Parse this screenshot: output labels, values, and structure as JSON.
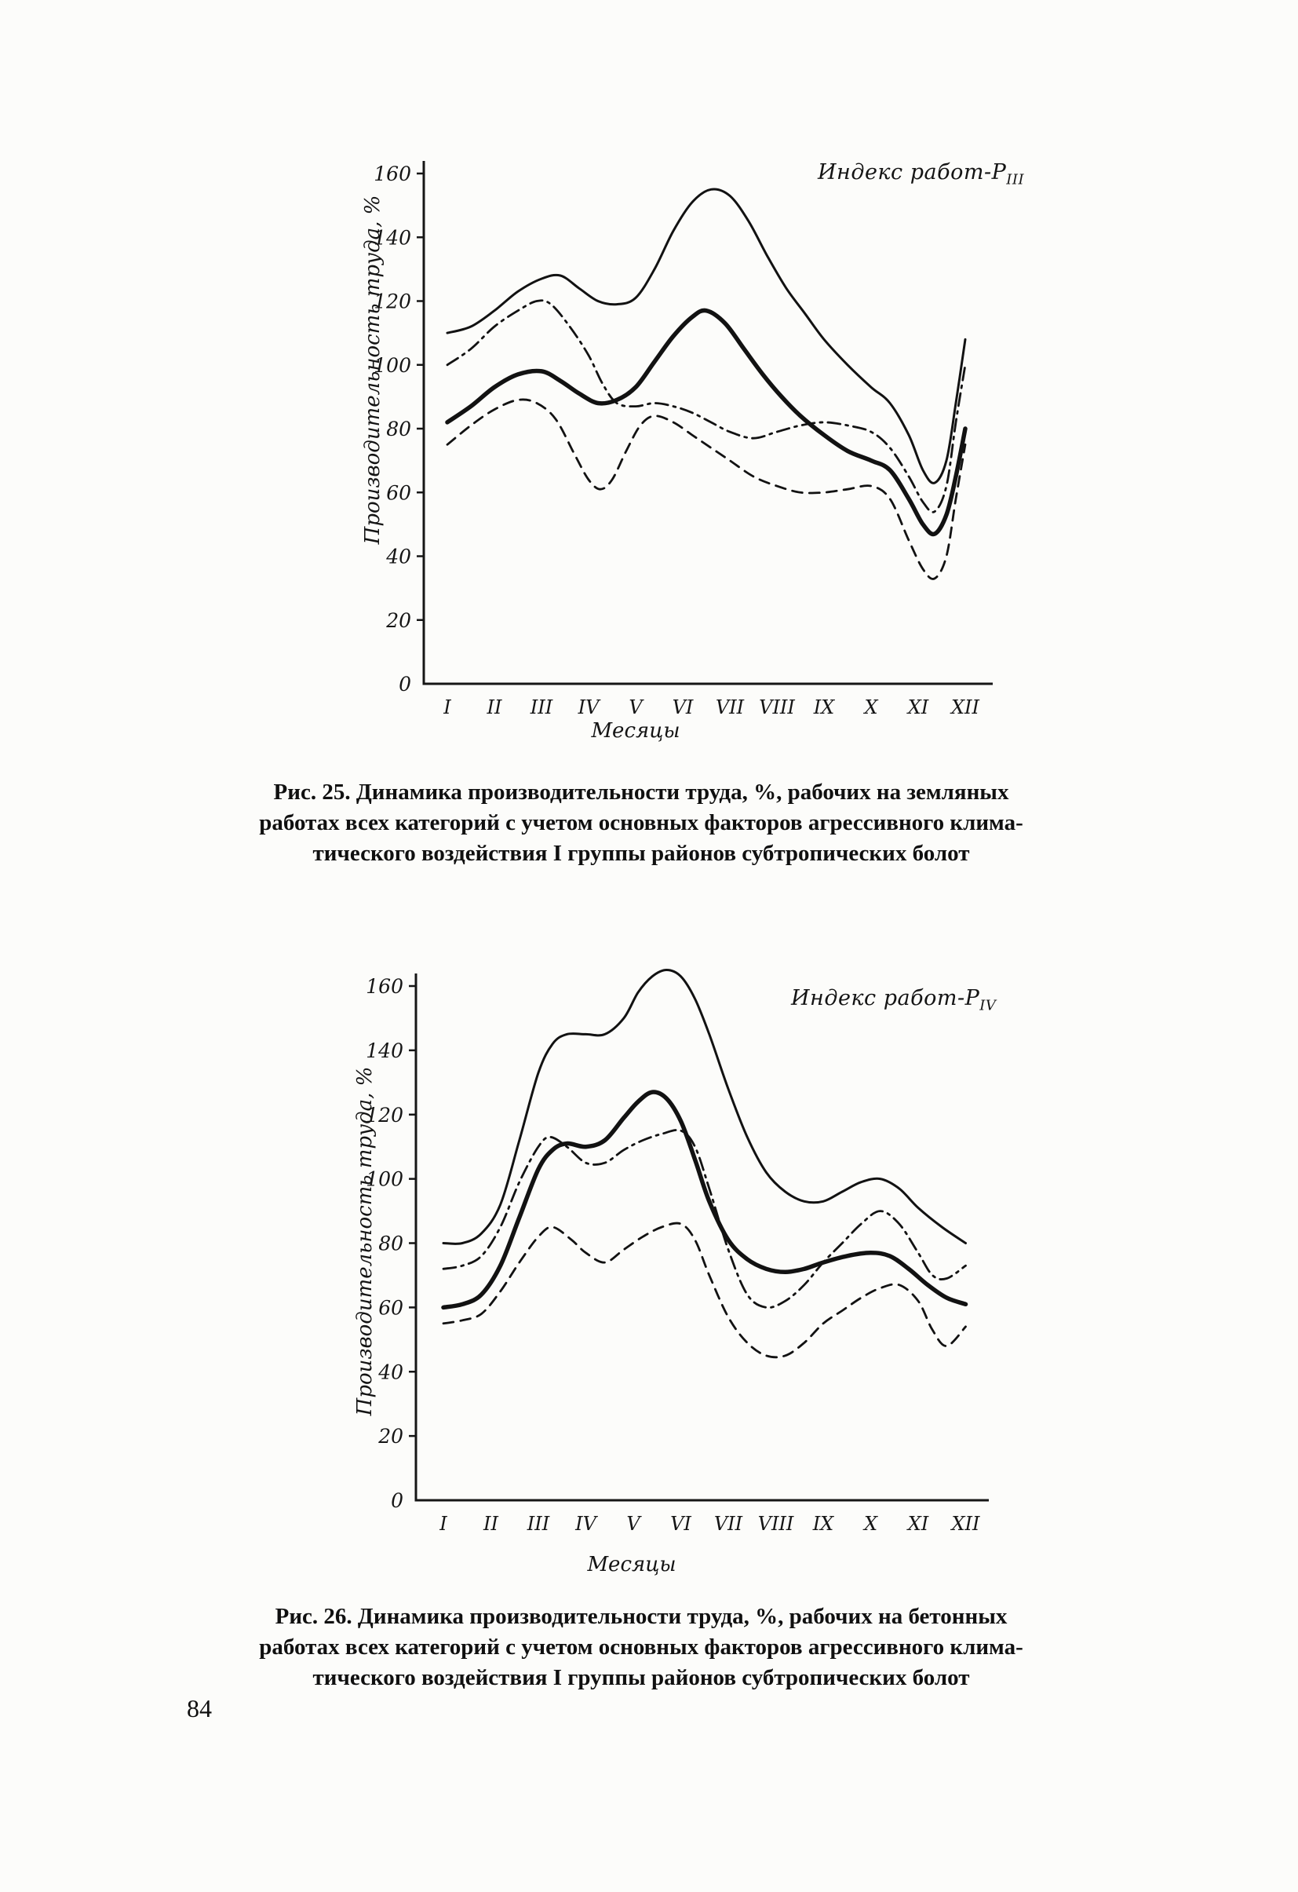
{
  "page_number": "84",
  "captions": {
    "fig25": [
      "Рис. 25. Динамика производительности труда, %, рабочих на земляных",
      "работах всех категорий с учетом основных факторов агрессивного клима-",
      "тического воздействия I группы районов субтропических болот"
    ],
    "fig26": [
      "Рис. 26. Динамика производительности труда, %, рабочих на бетонных",
      "работах всех категорий с учетом основных факторов агрессивного клима-",
      "тического воздействия I группы районов субтропических болот"
    ]
  },
  "chart_data": [
    {
      "type": "line",
      "title_main": "Индекс работ-Р",
      "title_sub": "III",
      "ylabel": "Производительность труда, %",
      "xlabel": "Месяцы",
      "x_ticklabels": [
        "I",
        "II",
        "III",
        "IV",
        "V",
        "VI",
        "VII",
        "VIII",
        "IX",
        "X",
        "XI",
        "XII"
      ],
      "ylim": [
        0,
        160
      ],
      "ytick_step": 20,
      "grid": false,
      "legend": "none",
      "line_color": "#121212",
      "series": [
        {
          "name": "curve-solid-thin",
          "style": "solid-thin",
          "points": [
            [
              1,
              110
            ],
            [
              1.5,
              112
            ],
            [
              2,
              117
            ],
            [
              2.5,
              123
            ],
            [
              3,
              127
            ],
            [
              3.4,
              128
            ],
            [
              3.8,
              124
            ],
            [
              4.2,
              120
            ],
            [
              4.6,
              119
            ],
            [
              5,
              121
            ],
            [
              5.4,
              130
            ],
            [
              5.8,
              142
            ],
            [
              6.2,
              151
            ],
            [
              6.6,
              155
            ],
            [
              7,
              153
            ],
            [
              7.4,
              145
            ],
            [
              7.8,
              134
            ],
            [
              8.2,
              124
            ],
            [
              8.6,
              116
            ],
            [
              9,
              108
            ],
            [
              9.5,
              100
            ],
            [
              10,
              93
            ],
            [
              10.4,
              88
            ],
            [
              10.8,
              78
            ],
            [
              11.1,
              67
            ],
            [
              11.35,
              63
            ],
            [
              11.6,
              70
            ],
            [
              11.8,
              88
            ],
            [
              12,
              108
            ]
          ]
        },
        {
          "name": "curve-dash-dot",
          "style": "dashdot",
          "points": [
            [
              1,
              100
            ],
            [
              1.5,
              105
            ],
            [
              2,
              112
            ],
            [
              2.5,
              117
            ],
            [
              2.9,
              120
            ],
            [
              3.2,
              119
            ],
            [
              3.6,
              112
            ],
            [
              4,
              103
            ],
            [
              4.3,
              94
            ],
            [
              4.6,
              88
            ],
            [
              5,
              87
            ],
            [
              5.4,
              88
            ],
            [
              5.8,
              87
            ],
            [
              6.2,
              85
            ],
            [
              6.6,
              82
            ],
            [
              7,
              79
            ],
            [
              7.5,
              77
            ],
            [
              8,
              79
            ],
            [
              8.5,
              81
            ],
            [
              9,
              82
            ],
            [
              9.5,
              81
            ],
            [
              10,
              79
            ],
            [
              10.4,
              74
            ],
            [
              10.8,
              65
            ],
            [
              11.1,
              57
            ],
            [
              11.35,
              54
            ],
            [
              11.6,
              62
            ],
            [
              11.8,
              82
            ],
            [
              12,
              100
            ]
          ]
        },
        {
          "name": "curve-solid-thick",
          "style": "solid-thick",
          "points": [
            [
              1,
              82
            ],
            [
              1.5,
              87
            ],
            [
              2,
              93
            ],
            [
              2.5,
              97
            ],
            [
              3,
              98
            ],
            [
              3.4,
              95
            ],
            [
              3.8,
              91
            ],
            [
              4.2,
              88
            ],
            [
              4.6,
              89
            ],
            [
              5,
              93
            ],
            [
              5.4,
              101
            ],
            [
              5.8,
              109
            ],
            [
              6.2,
              115
            ],
            [
              6.5,
              117
            ],
            [
              6.9,
              113
            ],
            [
              7.3,
              105
            ],
            [
              7.7,
              97
            ],
            [
              8.1,
              90
            ],
            [
              8.5,
              84
            ],
            [
              9,
              78
            ],
            [
              9.5,
              73
            ],
            [
              10,
              70
            ],
            [
              10.4,
              67
            ],
            [
              10.8,
              58
            ],
            [
              11.1,
              50
            ],
            [
              11.35,
              47
            ],
            [
              11.6,
              53
            ],
            [
              11.8,
              65
            ],
            [
              12,
              80
            ]
          ]
        },
        {
          "name": "curve-dashed",
          "style": "dashed",
          "points": [
            [
              1,
              75
            ],
            [
              1.5,
              81
            ],
            [
              2,
              86
            ],
            [
              2.5,
              89
            ],
            [
              2.9,
              88
            ],
            [
              3.3,
              83
            ],
            [
              3.7,
              72
            ],
            [
              4,
              64
            ],
            [
              4.25,
              61
            ],
            [
              4.5,
              64
            ],
            [
              4.8,
              73
            ],
            [
              5.1,
              81
            ],
            [
              5.4,
              84
            ],
            [
              5.8,
              82
            ],
            [
              6.2,
              78
            ],
            [
              6.6,
              74
            ],
            [
              7,
              70
            ],
            [
              7.5,
              65
            ],
            [
              8,
              62
            ],
            [
              8.5,
              60
            ],
            [
              9,
              60
            ],
            [
              9.5,
              61
            ],
            [
              10,
              62
            ],
            [
              10.4,
              58
            ],
            [
              10.8,
              45
            ],
            [
              11.1,
              36
            ],
            [
              11.35,
              33
            ],
            [
              11.6,
              40
            ],
            [
              11.8,
              58
            ],
            [
              12,
              75
            ]
          ]
        }
      ]
    },
    {
      "type": "line",
      "title_main": "Индекс работ-Р",
      "title_sub": "IV",
      "ylabel": "Производительность труда, %",
      "xlabel": "Месяцы",
      "x_ticklabels": [
        "I",
        "II",
        "III",
        "IV",
        "V",
        "VI",
        "VII",
        "VIII",
        "IX",
        "X",
        "XI",
        "XII"
      ],
      "ylim": [
        0,
        160
      ],
      "ytick_step": 20,
      "grid": false,
      "legend": "none",
      "line_color": "#121212",
      "series": [
        {
          "name": "curve-solid-thin",
          "style": "solid-thin",
          "points": [
            [
              1,
              80
            ],
            [
              1.4,
              80
            ],
            [
              1.8,
              83
            ],
            [
              2.2,
              92
            ],
            [
              2.6,
              112
            ],
            [
              3,
              133
            ],
            [
              3.3,
              142
            ],
            [
              3.6,
              145
            ],
            [
              4,
              145
            ],
            [
              4.4,
              145
            ],
            [
              4.8,
              150
            ],
            [
              5.1,
              158
            ],
            [
              5.4,
              163
            ],
            [
              5.7,
              165
            ],
            [
              6,
              163
            ],
            [
              6.3,
              156
            ],
            [
              6.6,
              145
            ],
            [
              7,
              128
            ],
            [
              7.4,
              113
            ],
            [
              7.8,
              102
            ],
            [
              8.2,
              96
            ],
            [
              8.6,
              93
            ],
            [
              9,
              93
            ],
            [
              9.4,
              96
            ],
            [
              9.8,
              99
            ],
            [
              10.2,
              100
            ],
            [
              10.6,
              97
            ],
            [
              11,
              91
            ],
            [
              11.5,
              85
            ],
            [
              12,
              80
            ]
          ]
        },
        {
          "name": "curve-solid-thick",
          "style": "solid-thick",
          "points": [
            [
              1,
              60
            ],
            [
              1.4,
              61
            ],
            [
              1.8,
              64
            ],
            [
              2.2,
              73
            ],
            [
              2.6,
              88
            ],
            [
              3,
              103
            ],
            [
              3.3,
              109
            ],
            [
              3.6,
              111
            ],
            [
              4,
              110
            ],
            [
              4.4,
              112
            ],
            [
              4.8,
              119
            ],
            [
              5.1,
              124
            ],
            [
              5.4,
              127
            ],
            [
              5.7,
              125
            ],
            [
              6,
              118
            ],
            [
              6.3,
              106
            ],
            [
              6.6,
              93
            ],
            [
              7,
              81
            ],
            [
              7.4,
              75
            ],
            [
              7.8,
              72
            ],
            [
              8.2,
              71
            ],
            [
              8.6,
              72
            ],
            [
              9,
              74
            ],
            [
              9.5,
              76
            ],
            [
              10,
              77
            ],
            [
              10.4,
              76
            ],
            [
              10.8,
              72
            ],
            [
              11.2,
              67
            ],
            [
              11.6,
              63
            ],
            [
              12,
              61
            ]
          ]
        },
        {
          "name": "curve-dash-dot",
          "style": "dashdot",
          "points": [
            [
              1,
              72
            ],
            [
              1.4,
              73
            ],
            [
              1.8,
              76
            ],
            [
              2.2,
              85
            ],
            [
              2.6,
              99
            ],
            [
              3,
              110
            ],
            [
              3.25,
              113
            ],
            [
              3.6,
              110
            ],
            [
              4,
              105
            ],
            [
              4.4,
              105
            ],
            [
              4.8,
              109
            ],
            [
              5.2,
              112
            ],
            [
              5.6,
              114
            ],
            [
              6,
              115
            ],
            [
              6.3,
              110
            ],
            [
              6.6,
              97
            ],
            [
              7,
              78
            ],
            [
              7.4,
              64
            ],
            [
              7.8,
              60
            ],
            [
              8.2,
              62
            ],
            [
              8.6,
              67
            ],
            [
              9,
              74
            ],
            [
              9.4,
              80
            ],
            [
              9.8,
              86
            ],
            [
              10.2,
              90
            ],
            [
              10.6,
              86
            ],
            [
              11,
              77
            ],
            [
              11.3,
              70
            ],
            [
              11.6,
              69
            ],
            [
              12,
              73
            ]
          ]
        },
        {
          "name": "curve-dashed",
          "style": "dashed",
          "points": [
            [
              1,
              55
            ],
            [
              1.4,
              56
            ],
            [
              1.8,
              58
            ],
            [
              2.2,
              65
            ],
            [
              2.6,
              74
            ],
            [
              3,
              82
            ],
            [
              3.3,
              85
            ],
            [
              3.7,
              81
            ],
            [
              4,
              77
            ],
            [
              4.4,
              74
            ],
            [
              4.8,
              78
            ],
            [
              5.2,
              82
            ],
            [
              5.6,
              85
            ],
            [
              6,
              86
            ],
            [
              6.3,
              81
            ],
            [
              6.6,
              70
            ],
            [
              7,
              57
            ],
            [
              7.4,
              49
            ],
            [
              7.8,
              45
            ],
            [
              8.2,
              45
            ],
            [
              8.6,
              49
            ],
            [
              9,
              55
            ],
            [
              9.4,
              59
            ],
            [
              9.8,
              63
            ],
            [
              10.2,
              66
            ],
            [
              10.6,
              67
            ],
            [
              11,
              62
            ],
            [
              11.3,
              53
            ],
            [
              11.6,
              48
            ],
            [
              12,
              54
            ]
          ]
        }
      ]
    }
  ]
}
